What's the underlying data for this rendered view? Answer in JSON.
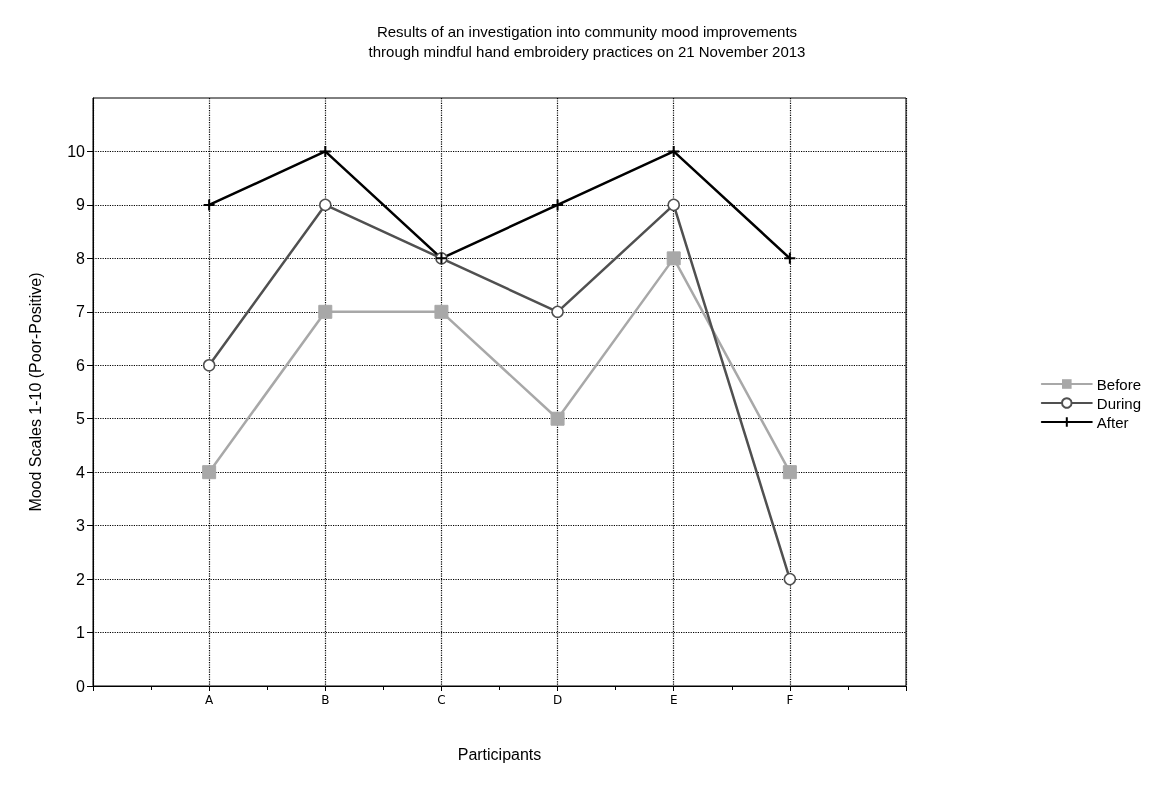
{
  "chart_data": {
    "type": "line",
    "title": "Results of an investigation into community mood improvements\nthrough mindful hand embroidery practices on 21 November 2013",
    "xlabel": "Participants",
    "ylabel": "Mood Scales 1-10 (Poor-Positive)",
    "categories": [
      "A",
      "B",
      "C",
      "D",
      "E",
      "F"
    ],
    "series": [
      {
        "name": "Before",
        "color": "#a8a8a8",
        "marker": "square",
        "values": [
          4,
          7,
          7,
          5,
          8,
          4
        ]
      },
      {
        "name": "During",
        "color": "#505050",
        "marker": "circle",
        "values": [
          6,
          9,
          8,
          7,
          9,
          2
        ]
      },
      {
        "name": "After",
        "color": "#000000",
        "marker": "cross",
        "values": [
          9,
          10,
          8,
          9,
          10,
          8
        ]
      }
    ],
    "ylim": [
      0,
      11
    ],
    "yticks": [
      0,
      1,
      2,
      3,
      4,
      5,
      6,
      7,
      8,
      9,
      10
    ],
    "grid": true,
    "legend": "right",
    "line_style": "solid"
  }
}
